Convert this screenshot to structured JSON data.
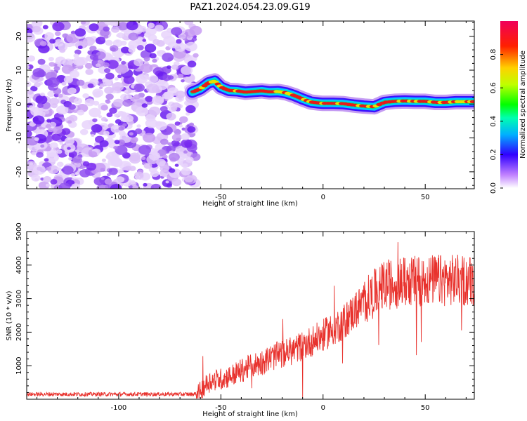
{
  "figure_title": "PAZ1.2024.054.23.09.G19",
  "chart_data": [
    {
      "type": "heatmap",
      "title": "",
      "xlabel": "Height of straight line (km)",
      "ylabel": "Frequency (Hz)",
      "xlim": [
        -145,
        74
      ],
      "ylim": [
        -25,
        24.5
      ],
      "xticks": [
        -100,
        -50,
        0,
        50
      ],
      "xtick_labels": [
        "-100",
        "-50",
        "0",
        "50"
      ],
      "yticks": [
        -20,
        -10,
        0,
        10,
        20
      ],
      "ytick_labels": [
        "-20",
        "-10",
        "0",
        "10",
        "20"
      ],
      "noise_region_x": [
        -145,
        -62
      ],
      "ridge": {
        "x": [
          -64,
          -60,
          -56,
          -53,
          -50,
          -46,
          -42,
          -38,
          -34,
          -30,
          -26,
          -22,
          -18,
          -14,
          -10,
          -6,
          -2,
          0,
          5,
          10,
          15,
          20,
          25,
          30,
          35,
          40,
          45,
          50,
          55,
          60,
          65,
          70,
          74
        ],
        "frequency_hz": [
          3.5,
          4.5,
          6.3,
          6.8,
          5.0,
          4.0,
          3.9,
          3.5,
          3.7,
          3.9,
          3.6,
          3.7,
          3.3,
          2.5,
          1.5,
          0.6,
          0.3,
          0.2,
          0.2,
          0.1,
          -0.3,
          -0.6,
          -0.8,
          0.5,
          0.8,
          0.9,
          0.8,
          0.8,
          0.5,
          0.5,
          0.7,
          0.7,
          0.7
        ]
      },
      "colorbar": {
        "label": "Normalized spectral amplitude",
        "range": [
          0,
          1
        ],
        "ticks": [
          0.0,
          0.2,
          0.4,
          0.6,
          0.8
        ],
        "tick_labels": [
          "0.0",
          "0.2",
          "0.4",
          "0.6",
          "0.8"
        ]
      },
      "grid": false
    },
    {
      "type": "line",
      "title": "",
      "xlabel": "Height of straight line (km)",
      "ylabel": "SNR (10 * v/v)",
      "xlim": [
        -145,
        74
      ],
      "ylim": [
        0,
        5000
      ],
      "xticks": [
        -100,
        -50,
        0,
        50
      ],
      "xtick_labels": [
        "-100",
        "-50",
        "0",
        "50"
      ],
      "yticks": [
        1000,
        2000,
        3000,
        4000,
        5000
      ],
      "ytick_labels": [
        "1000",
        "2000",
        "3000",
        "4000",
        "5000"
      ],
      "color": "#e8322d",
      "series_trend": {
        "x": [
          -145,
          -64,
          -61,
          -58,
          -55,
          -50,
          -45,
          -40,
          -35,
          -30,
          -25,
          -20,
          -15,
          -10,
          -5,
          0,
          5,
          10,
          15,
          20,
          25,
          30,
          40,
          50,
          60,
          74
        ],
        "snr": [
          150,
          150,
          180,
          400,
          550,
          600,
          700,
          850,
          1000,
          1100,
          1250,
          1350,
          1450,
          1600,
          1750,
          1900,
          2100,
          2300,
          2600,
          2900,
          3150,
          3400,
          3500,
          3550,
          3550,
          3550
        ]
      },
      "grid": false
    }
  ]
}
